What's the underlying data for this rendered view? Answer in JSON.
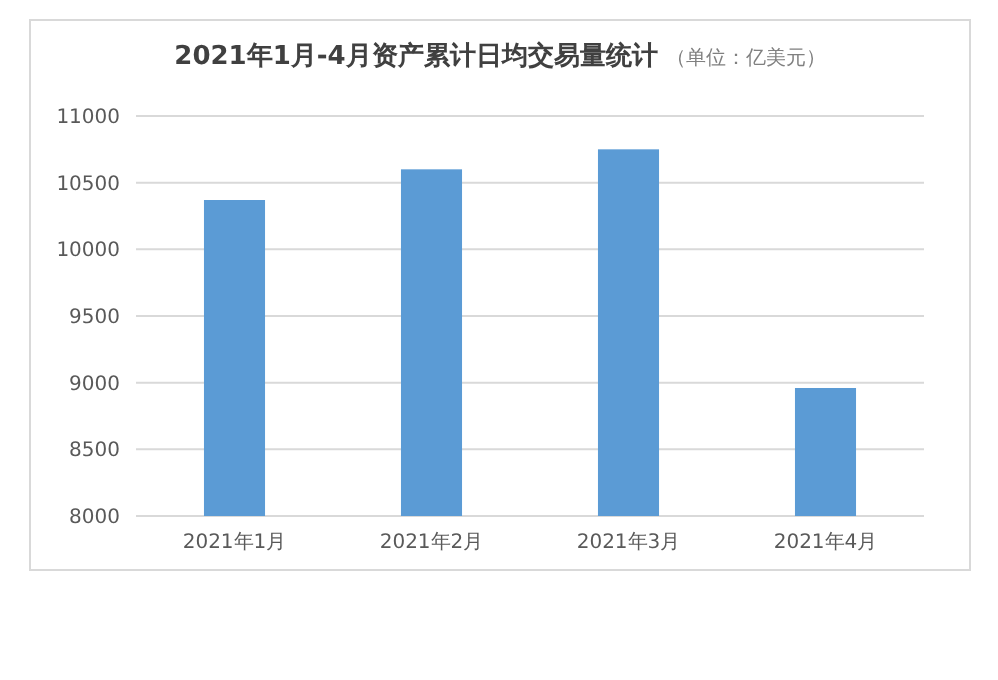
{
  "chart_data": {
    "type": "bar",
    "title": "2021年1月-4月资产累计日均交易量统计",
    "subtitle": "（单位：亿美元）",
    "categories": [
      "2021年1月",
      "2021年2月",
      "2021年3月",
      "2021年4月"
    ],
    "values": [
      10370,
      10600,
      10750,
      8960
    ],
    "color": "#5b9bd5",
    "ylim": [
      8000,
      11000
    ],
    "yticks": [
      8000,
      8500,
      9000,
      9500,
      10000,
      10500,
      11000
    ],
    "grid": "y"
  }
}
